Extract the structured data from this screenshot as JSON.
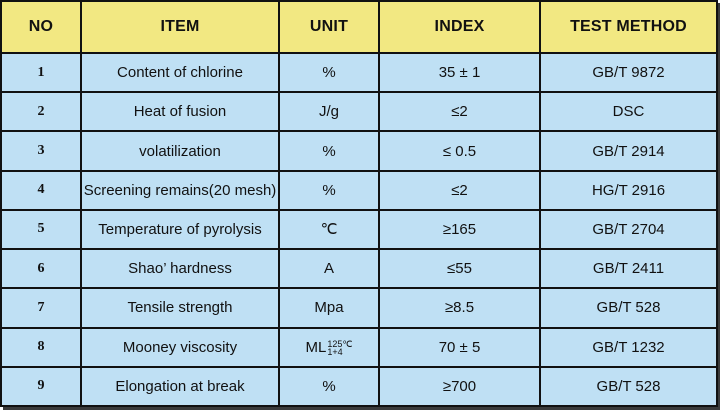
{
  "header": {
    "no": "NO",
    "item": "ITEM",
    "unit": "UNIT",
    "index": "INDEX",
    "method": "TEST METHOD"
  },
  "rows": [
    {
      "no": "1",
      "item": "Content of chlorine",
      "unit": "%",
      "index": "35 ± 1",
      "method": "GB/T 9872"
    },
    {
      "no": "2",
      "item": "Heat of fusion",
      "unit": "J/g",
      "index": "≤2",
      "method": "DSC"
    },
    {
      "no": "3",
      "item": "volatilization",
      "unit": "%",
      "index": "≤ 0.5",
      "method": "GB/T 2914"
    },
    {
      "no": "4",
      "item": "Screening remains(20 mesh)",
      "unit": "%",
      "index": "≤2",
      "method": "HG/T 2916"
    },
    {
      "no": "5",
      "item": "Temperature of pyrolysis",
      "unit": "℃",
      "index": "≥165",
      "method": "GB/T 2704"
    },
    {
      "no": "6",
      "item": "Shao’ hardness",
      "unit": "A",
      "index": "≤55",
      "method": "GB/T 2411"
    },
    {
      "no": "7",
      "item": "Tensile strength",
      "unit": "Mpa",
      "index": "≥8.5",
      "method": "GB/T 528"
    },
    {
      "no": "8",
      "item": "Mooney viscosity",
      "unit": "ML",
      "unit_sup": "125℃",
      "unit_sub": "1+4",
      "index": "70 ± 5",
      "method": "GB/T 1232"
    },
    {
      "no": "9",
      "item": "Elongation at break",
      "unit": "%",
      "index": "≥700",
      "method": "GB/T 528"
    }
  ]
}
